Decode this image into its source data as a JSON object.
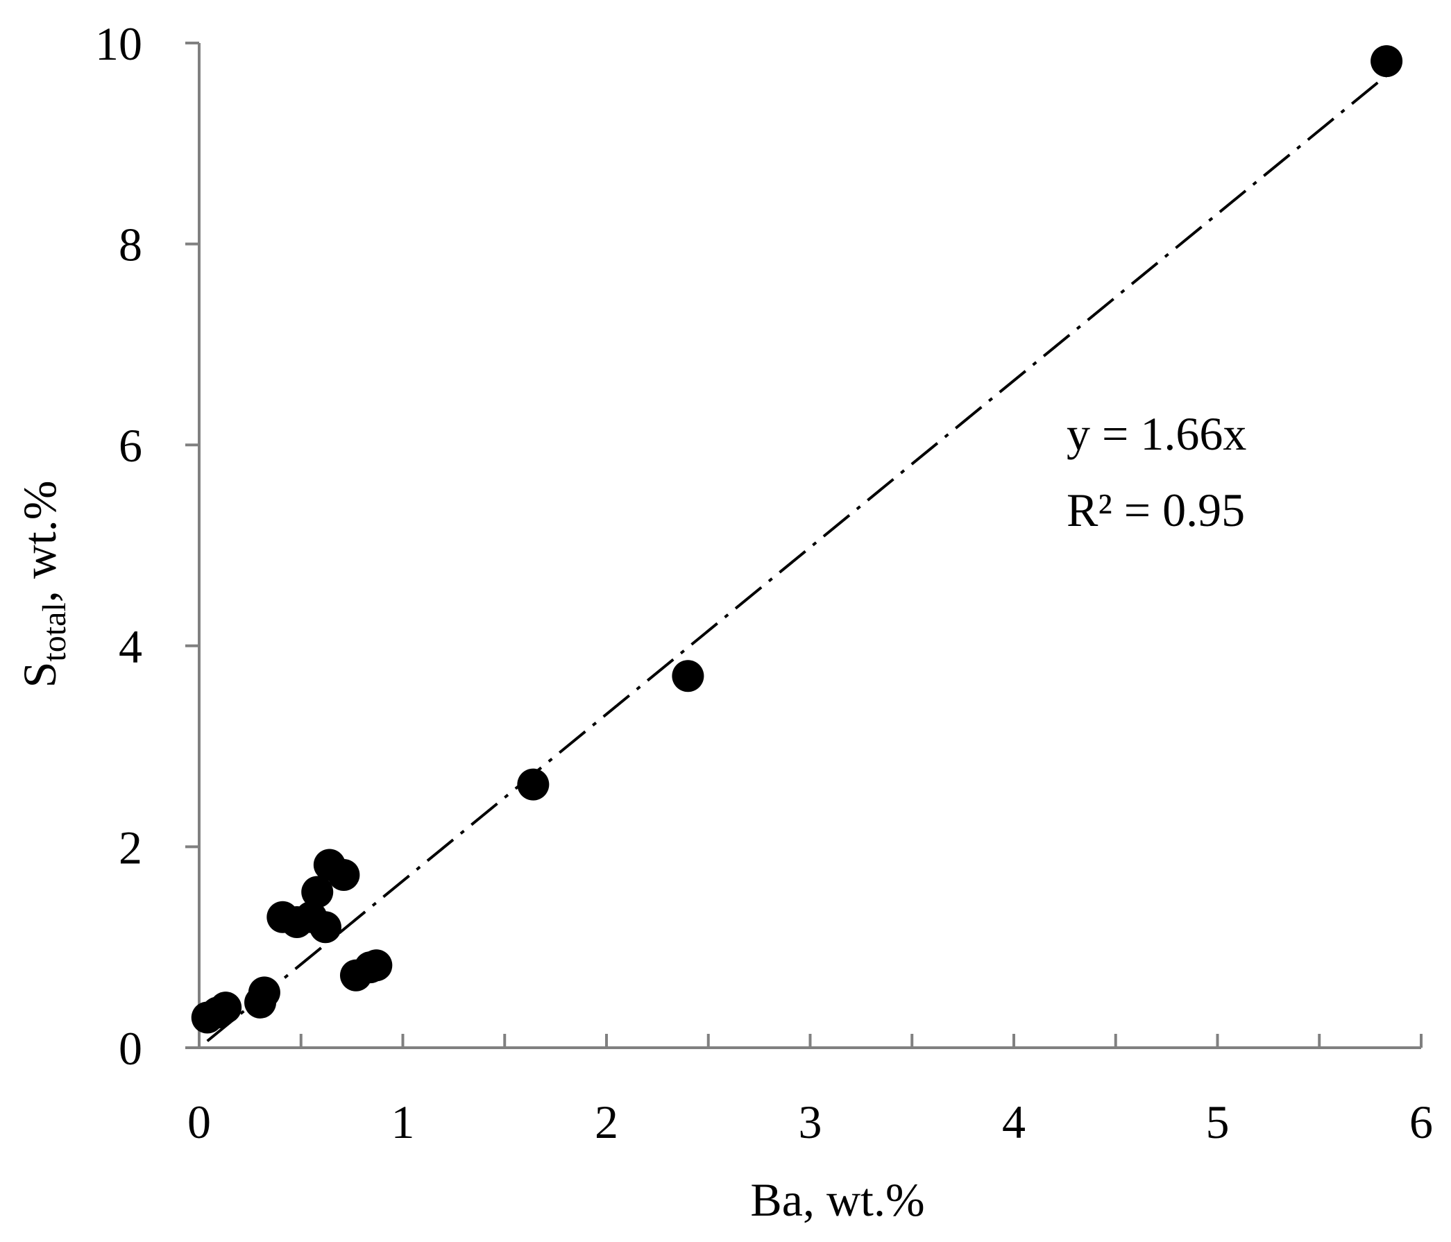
{
  "chart_data": {
    "type": "scatter",
    "xlabel": "Ba, wt.%",
    "ylabel": {
      "main": "S",
      "subscript": "total",
      "rest": ", wt.%"
    },
    "xlim": [
      0,
      6
    ],
    "ylim": [
      0,
      10
    ],
    "xticks": [
      "0",
      "1",
      "2",
      "3",
      "4",
      "5",
      "6"
    ],
    "yticks": [
      "0",
      "2",
      "4",
      "6",
      "8",
      "10"
    ],
    "x_minor_step": 0.5,
    "grid": false,
    "marker_color": "#000000",
    "axis_color": "#808080",
    "points": [
      {
        "x": 0.04,
        "y": 0.3
      },
      {
        "x": 0.09,
        "y": 0.35
      },
      {
        "x": 0.13,
        "y": 0.4
      },
      {
        "x": 0.3,
        "y": 0.45
      },
      {
        "x": 0.32,
        "y": 0.55
      },
      {
        "x": 0.41,
        "y": 1.3
      },
      {
        "x": 0.48,
        "y": 1.25
      },
      {
        "x": 0.55,
        "y": 1.3
      },
      {
        "x": 0.58,
        "y": 1.55
      },
      {
        "x": 0.62,
        "y": 1.2
      },
      {
        "x": 0.64,
        "y": 1.82
      },
      {
        "x": 0.71,
        "y": 1.72
      },
      {
        "x": 0.77,
        "y": 0.72
      },
      {
        "x": 0.84,
        "y": 0.8
      },
      {
        "x": 0.87,
        "y": 0.82
      },
      {
        "x": 1.64,
        "y": 2.62
      },
      {
        "x": 2.4,
        "y": 3.7
      },
      {
        "x": 5.83,
        "y": 9.82
      }
    ],
    "trendline": {
      "style": "dash-dot",
      "slope": 1.66,
      "intercept": 0,
      "x_range": [
        0.04,
        5.83
      ]
    },
    "annotations": [
      "y = 1.66x",
      "R² = 0.95"
    ]
  }
}
